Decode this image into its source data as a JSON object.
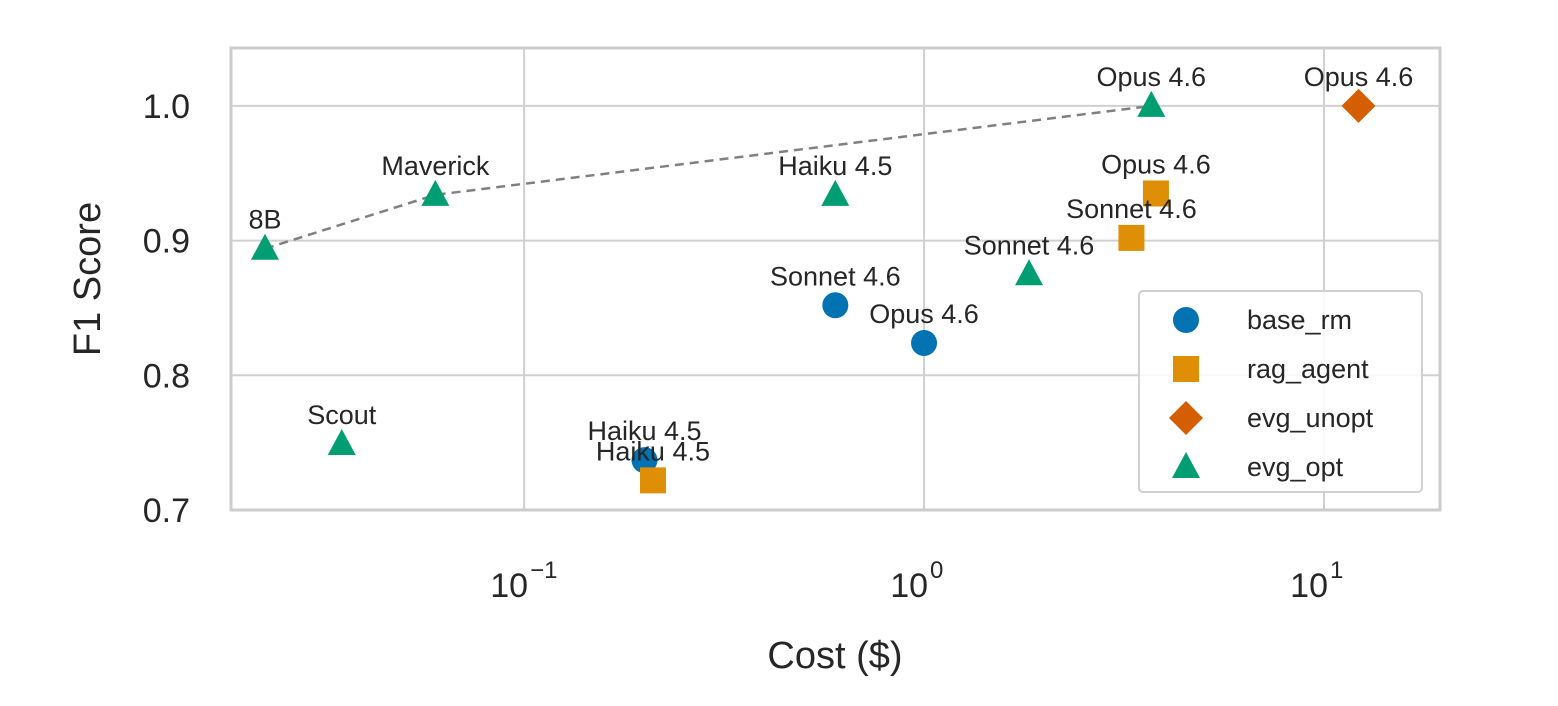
{
  "chart_data": {
    "type": "scatter",
    "title": "",
    "xlabel": "Cost ($)",
    "ylabel": "F1 Score",
    "xscale": "log",
    "xlim": [
      0.0185,
      19.5
    ],
    "ylim": [
      0.7,
      1.043
    ],
    "xticks": [
      {
        "value": 0.1,
        "base": "10",
        "exp": "−1"
      },
      {
        "value": 1,
        "base": "10",
        "exp": "0"
      },
      {
        "value": 10,
        "base": "10",
        "exp": "1"
      }
    ],
    "yticks": [
      {
        "value": 0.7,
        "label": "0.7"
      },
      {
        "value": 0.8,
        "label": "0.8"
      },
      {
        "value": 0.9,
        "label": "0.9"
      },
      {
        "value": 1.0,
        "label": "1.0"
      }
    ],
    "grid": true,
    "legend_position": "lower-right",
    "series": [
      {
        "name": "base_rm",
        "marker": "circle",
        "color": "#0173b2",
        "points": [
          {
            "x": 0.2,
            "y": 0.737,
            "label": "Haiku 4.5"
          },
          {
            "x": 0.6,
            "y": 0.852,
            "label": "Sonnet 4.6"
          },
          {
            "x": 1.0,
            "y": 0.824,
            "label": "Opus 4.6"
          }
        ]
      },
      {
        "name": "rag_agent",
        "marker": "square",
        "color": "#de8f05",
        "points": [
          {
            "x": 0.21,
            "y": 0.722,
            "label": "Haiku 4.5"
          },
          {
            "x": 3.3,
            "y": 0.902,
            "label": "Sonnet 4.6"
          },
          {
            "x": 3.8,
            "y": 0.935,
            "label": "Opus 4.6"
          }
        ]
      },
      {
        "name": "evg_unopt",
        "marker": "diamond",
        "color": "#d55e00",
        "points": [
          {
            "x": 12.2,
            "y": 1.0,
            "label": "Opus 4.6"
          }
        ]
      },
      {
        "name": "evg_opt",
        "marker": "triangle",
        "color": "#029e73",
        "points": [
          {
            "x": 0.0225,
            "y": 0.894,
            "label": "8B"
          },
          {
            "x": 0.035,
            "y": 0.749,
            "label": "Scout"
          },
          {
            "x": 0.06,
            "y": 0.934,
            "label": "Maverick"
          },
          {
            "x": 0.6,
            "y": 0.934,
            "label": "Haiku 4.5"
          },
          {
            "x": 1.83,
            "y": 0.875,
            "label": "Sonnet 4.6"
          },
          {
            "x": 3.7,
            "y": 1.0,
            "label": "Opus 4.6"
          }
        ]
      }
    ],
    "frontier": {
      "style": "dashed",
      "color": "#808080",
      "points": [
        {
          "x": 0.0225,
          "y": 0.894
        },
        {
          "x": 0.06,
          "y": 0.934
        },
        {
          "x": 3.7,
          "y": 1.0
        }
      ]
    }
  }
}
